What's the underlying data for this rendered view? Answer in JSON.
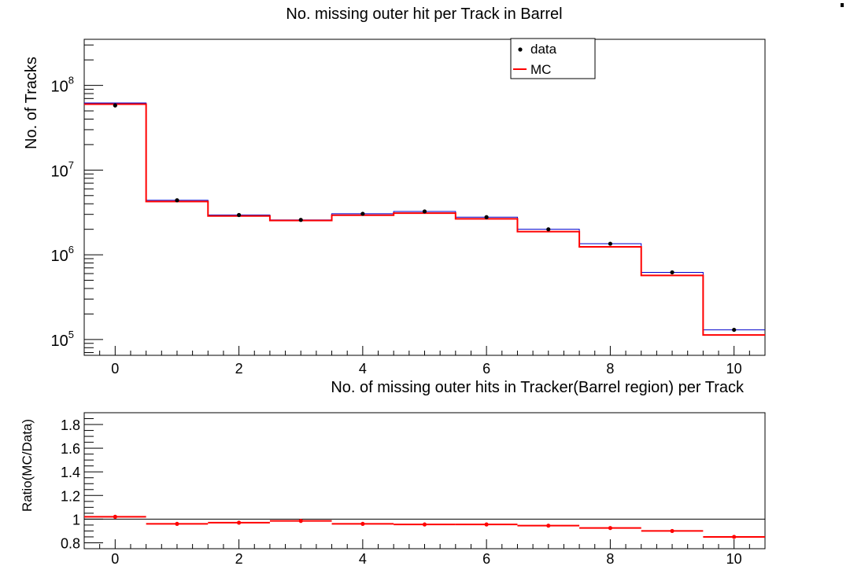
{
  "chart_data": [
    {
      "type": "histogram",
      "title": "No. missing outer hit per Track in Barrel",
      "xlabel": "No. of missing outer hits in Tracker(Barrel region) per Track",
      "ylabel": "No. of Tracks",
      "xlim": [
        -0.5,
        10.5
      ],
      "ylim": [
        65000,
        350000000
      ],
      "yscale": "log",
      "x_ticks": [
        0,
        2,
        4,
        6,
        8,
        10
      ],
      "y_ticks": [
        {
          "value": 100000,
          "base": "10",
          "exp": "5"
        },
        {
          "value": 1000000,
          "base": "10",
          "exp": "6"
        },
        {
          "value": 10000000,
          "base": "10",
          "exp": "7"
        },
        {
          "value": 100000000,
          "base": "10",
          "exp": "8"
        }
      ],
      "legend_position": "top-right",
      "legend": [
        {
          "label": "data",
          "marker": "point",
          "color": "#000000"
        },
        {
          "label": "MC",
          "marker": "line",
          "color": "#ff0000"
        }
      ],
      "x": [
        0,
        1,
        2,
        3,
        4,
        5,
        6,
        7,
        8,
        9,
        10
      ],
      "series": [
        {
          "name": "data",
          "style": "points",
          "color": "#000000",
          "values": [
            58000000,
            4400000,
            2950000,
            2580000,
            3050000,
            3250000,
            2780000,
            2000000,
            1350000,
            620000,
            130000
          ]
        },
        {
          "name": "MC",
          "style": "step",
          "color": "#ff0000",
          "values": [
            60000000,
            4250000,
            2870000,
            2540000,
            2930000,
            3100000,
            2660000,
            1880000,
            1240000,
            570000,
            113000
          ]
        },
        {
          "style": "step",
          "color": "#0000cc",
          "values": [
            62000000,
            4400000,
            2950000,
            2580000,
            3050000,
            3250000,
            2780000,
            2000000,
            1350000,
            620000,
            130000
          ]
        }
      ]
    },
    {
      "type": "line",
      "ylabel": "Ratio(MC/Data)",
      "xlim": [
        -0.5,
        10.5
      ],
      "ylim": [
        0.75,
        1.9
      ],
      "x_ticks": [
        0,
        2,
        4,
        6,
        8,
        10
      ],
      "y_ticks": [
        "0.8",
        "1",
        "1.2",
        "1.4",
        "1.6",
        "1.8"
      ],
      "reference_line": 1,
      "x": [
        0,
        1,
        2,
        3,
        4,
        5,
        6,
        7,
        8,
        9,
        10
      ],
      "series": [
        {
          "color": "#ff0000",
          "values": [
            1.02,
            0.96,
            0.97,
            0.985,
            0.96,
            0.955,
            0.955,
            0.945,
            0.925,
            0.9,
            0.85
          ]
        }
      ]
    }
  ]
}
